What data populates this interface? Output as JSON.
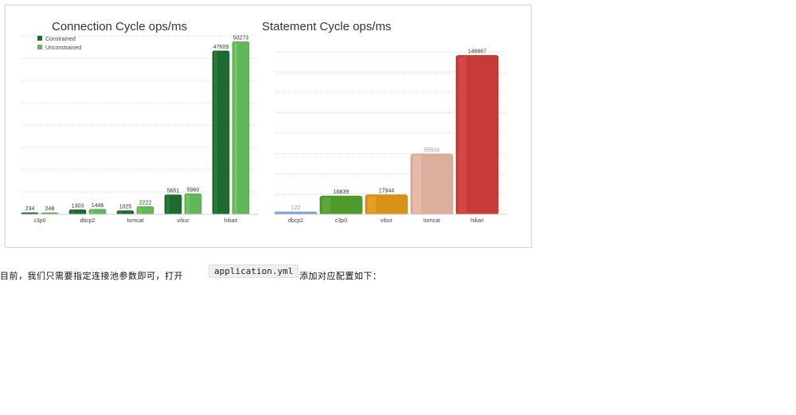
{
  "chart_data": [
    {
      "type": "bar",
      "title": "Connection Cycle ops/ms",
      "categories": [
        "c3p0",
        "dbcp2",
        "tomcat",
        "vibur",
        "hikari"
      ],
      "series": [
        {
          "name": "Constrained",
          "values": [
            234,
            1303,
            1025,
            5651,
            47609
          ],
          "value_labels": [
            "234",
            "1303",
            "1025",
            "5651",
            "47609"
          ]
        },
        {
          "name": "Unconstrained",
          "values": [
            248,
            1446,
            2222,
            5960,
            50273
          ],
          "value_labels": [
            "248",
            "1446",
            "2222",
            "5960",
            "50273"
          ]
        }
      ],
      "ylim": [
        0,
        52000
      ],
      "grid": true,
      "legend": "top-left",
      "colors": [
        "#1e6a30",
        "#63b75a"
      ]
    },
    {
      "type": "bar",
      "title": "Statement Cycle ops/ms",
      "categories": [
        "dbcp2",
        "c3p0",
        "vibur",
        "tomcat",
        "hikari"
      ],
      "values": [
        122,
        16839,
        17944,
        55500,
        146667
      ],
      "value_labels": [
        "122",
        "16839",
        "17944",
        "55500",
        "146667"
      ],
      "ylim": [
        0,
        150000
      ],
      "grid": true,
      "colors": [
        "#7fa4d6",
        "#4f9a2c",
        "#d89216",
        "#dcae9e",
        "#c63a3a"
      ]
    }
  ],
  "caption": {
    "before": "目前，我们只需要指定连接池参数即可，打开",
    "code": "application.yml",
    "after": "添加对应配置如下："
  }
}
